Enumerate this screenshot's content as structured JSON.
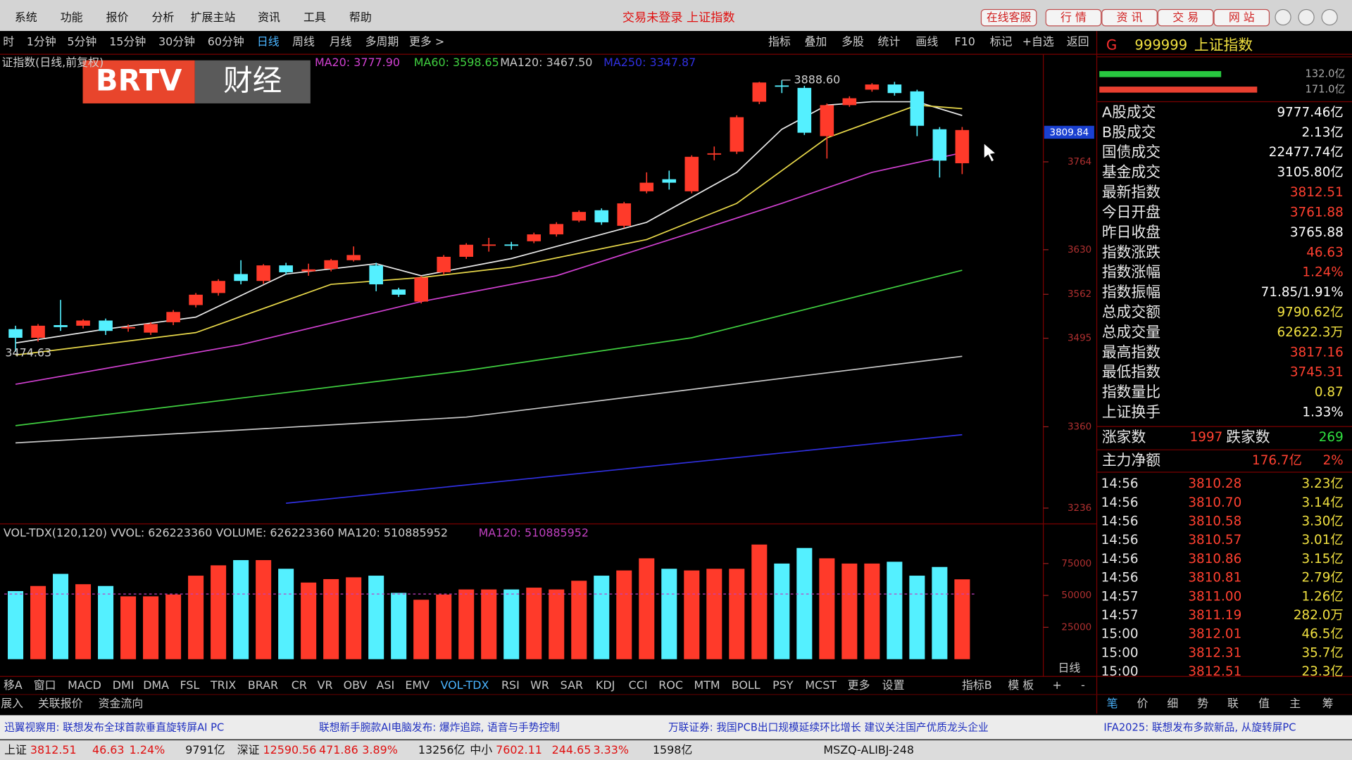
{
  "menu": [
    "系统",
    "功能",
    "报价",
    "分析",
    "扩展主站",
    "资讯",
    "工具",
    "帮助"
  ],
  "window_title": "交易未登录 上证指数",
  "top_buttons": [
    "在线客服",
    "行 情",
    "资 讯",
    "交 易",
    "网 站"
  ],
  "periods": [
    "时",
    "1分钟",
    "5分钟",
    "15分钟",
    "30分钟",
    "60分钟",
    "日线",
    "周线",
    "月线",
    "多周期",
    "更多 >"
  ],
  "tools": [
    "指标",
    "叠加",
    "多股",
    "统计",
    "画线",
    "F10",
    "标记",
    "+自选",
    "返回"
  ],
  "logo": {
    "brand": "BRTV",
    "channel": "财经"
  },
  "chart_data": [
    {
      "type": "candlestick",
      "title": "证指数(日线,前复权)",
      "up_color": "#ff3a2a",
      "down_color": "#54f0ff",
      "open": [
        3508.9,
        3495.7,
        3515,
        3514.1,
        3522.0,
        3510,
        3503.6,
        3519.4,
        3545.6,
        3564.0,
        3592.9,
        3582.4,
        3606.1,
        3597,
        3600.8,
        3614.0,
        3606.1,
        3569.3,
        3550.9,
        3595.6,
        3619.2,
        3636,
        3638,
        3642.9,
        3653.4,
        3674.4,
        3690.2,
        3666.5,
        3719.1,
        3737.5,
        3719.1,
        3775,
        3779.5,
        3855.7,
        3880.5,
        3876.8,
        3803.2,
        3850.5,
        3874.1,
        3882.0,
        3871.5,
        3813.7,
        3761.88
      ],
      "close": [
        3495.7,
        3514.1,
        3512,
        3522.0,
        3506.2,
        3512,
        3516.7,
        3535.1,
        3561.4,
        3582.4,
        3582.4,
        3606.1,
        3595.6,
        3600,
        3614.0,
        3621.9,
        3577.2,
        3561.4,
        3587.6,
        3619.2,
        3637.6,
        3638,
        3636,
        3653.4,
        3669.2,
        3687.6,
        3671.8,
        3700.7,
        3732.2,
        3732.2,
        3771.7,
        3777,
        3832.1,
        3885,
        3879.4,
        3808.4,
        3850.5,
        3861.0,
        3882.0,
        3868.9,
        3819.0,
        3765.88,
        3812.51
      ],
      "high": [
        3514.1,
        3516.7,
        3553.5,
        3524,
        3525,
        3516,
        3519.4,
        3538,
        3564,
        3585,
        3614.0,
        3608,
        3610,
        3608.7,
        3616,
        3635.0,
        3610,
        3572,
        3590,
        3621.9,
        3640,
        3648.1,
        3642,
        3656,
        3672,
        3690,
        3693,
        3703,
        3748.0,
        3750.6,
        3774,
        3787.4,
        3835,
        3886,
        3888.6,
        3880,
        3853,
        3864,
        3884,
        3886,
        3874,
        3817,
        3817.16
      ],
      "low": [
        3474.63,
        3490,
        3506.2,
        3510,
        3500,
        3505,
        3500,
        3515,
        3542,
        3560,
        3577.2,
        3578,
        3592,
        3590.3,
        3597,
        3612,
        3566.7,
        3558,
        3548,
        3592,
        3616,
        3627.1,
        3630,
        3640,
        3650,
        3672,
        3668,
        3663,
        3716,
        3721.7,
        3716,
        3766.4,
        3776,
        3852,
        3868.9,
        3805,
        3769.0,
        3848,
        3871,
        3865,
        3803.2,
        3740.1,
        3745.31
      ],
      "annotations": [
        {
          "value": 3888.6,
          "label": "3888.60"
        },
        {
          "value": 3474.63,
          "label": "3474.63"
        }
      ],
      "cursor_label": "3809.84",
      "lines": [
        {
          "name": "MA5",
          "color": "#e8e8e8",
          "idx": [
            0,
            4,
            8,
            12,
            16,
            18,
            22,
            28,
            32,
            34,
            36,
            38,
            40,
            42
          ],
          "values": [
            3487.8,
            3508.9,
            3527.2,
            3592.9,
            3608.7,
            3590.3,
            3616.6,
            3671.8,
            3748.0,
            3813.7,
            3850.5,
            3855.7,
            3855.7,
            3834.7
          ]
        },
        {
          "name": "MA10",
          "color": "#e8d84a",
          "idx": [
            0,
            8,
            14,
            18,
            22,
            28,
            32,
            36,
            40,
            42
          ],
          "values": [
            3469.4,
            3503.6,
            3577.2,
            3587.6,
            3603.5,
            3645.5,
            3700.7,
            3800.6,
            3850.5,
            3845.2
          ]
        },
        {
          "name": "MA20",
          "color": "#d040d0",
          "label": "MA20: 3777.90",
          "idx": [
            0,
            10,
            18,
            24,
            30,
            34,
            38,
            42
          ],
          "values": [
            3424.8,
            3485.2,
            3550.9,
            3590.3,
            3656.0,
            3700.7,
            3748.0,
            3777.9
          ]
        },
        {
          "name": "MA60",
          "color": "#40d040",
          "label": "MA60: 3598.65",
          "idx": [
            0,
            20,
            30,
            42
          ],
          "values": [
            3361.7,
            3445.8,
            3495.7,
            3598.65
          ]
        },
        {
          "name": "MA120",
          "color": "#c8c8c8",
          "label": "MA120: 3467.50",
          "idx": [
            0,
            20,
            42
          ],
          "values": [
            3335.4,
            3374.8,
            3467.5
          ]
        },
        {
          "name": "MA250",
          "color": "#3030e0",
          "label": "MA250: 3347.87",
          "idx": [
            12,
            42
          ],
          "values": [
            3243.4,
            3347.87
          ]
        }
      ],
      "ylim": [
        3214.5,
        3924.1
      ],
      "yticks": [
        3236,
        3360,
        3495,
        3562,
        3630,
        3764
      ]
    },
    {
      "type": "bar",
      "title": "VOL-TDX(120,120) VVOL: 626223360 VOLUME: 626223360 MA120: 510885952",
      "ma_label": "MA120: 510885952",
      "ma_value": 51088.5952,
      "ma_color": "#c040c0",
      "values": [
        53400,
        57400,
        66900,
        58800,
        57400,
        49300,
        49300,
        50700,
        65500,
        73600,
        77700,
        77700,
        70900,
        60100,
        62800,
        64200,
        65500,
        52000,
        46600,
        50700,
        54700,
        54700,
        54700,
        56100,
        54700,
        61500,
        65500,
        69600,
        79100,
        70900,
        69600,
        70900,
        70900,
        89900,
        75000,
        87200,
        79100,
        75000,
        75000,
        76400,
        65500,
        72300,
        62622.3
      ],
      "ylim": [
        0,
        103380
      ],
      "yticks": [
        25000,
        50000,
        75000
      ]
    }
  ],
  "quote": {
    "flag": "G",
    "code": "999999",
    "name": "上证指数",
    "bars": [
      {
        "value": 132.0,
        "label": "132.0亿",
        "color": "#28c840"
      },
      {
        "value": 171.0,
        "label": "171.0亿",
        "color": "#e84030"
      }
    ],
    "stats": [
      {
        "label": "A股成交",
        "value": "9777.46亿",
        "color": "#ffffff"
      },
      {
        "label": "B股成交",
        "value": "2.13亿",
        "color": "#ffffff"
      },
      {
        "label": "国债成交",
        "value": "22477.74亿",
        "color": "#ffffff"
      },
      {
        "label": "基金成交",
        "value": "3105.80亿",
        "color": "#ffffff"
      },
      {
        "label": "最新指数",
        "value": "3812.51",
        "color": "#ff4030"
      },
      {
        "label": "今日开盘",
        "value": "3761.88",
        "color": "#ff4030"
      },
      {
        "label": "昨日收盘",
        "value": "3765.88",
        "color": "#ffffff"
      },
      {
        "label": "指数涨跌",
        "value": "46.63",
        "color": "#ff4030"
      },
      {
        "label": "指数涨幅",
        "value": "1.24%",
        "color": "#ff4030"
      },
      {
        "label": "指数振幅",
        "value": "71.85/1.91%",
        "color": "#ffffff"
      },
      {
        "label": "总成交额",
        "value": "9790.62亿",
        "color": "#f0e040"
      },
      {
        "label": "总成交量",
        "value": "62622.3万",
        "color": "#f0e040"
      },
      {
        "label": "最高指数",
        "value": "3817.16",
        "color": "#ff4030"
      },
      {
        "label": "最低指数",
        "value": "3745.31",
        "color": "#ff4030"
      },
      {
        "label": "指数量比",
        "value": "0.87",
        "color": "#f0e040"
      },
      {
        "label": "上证换手",
        "value": "1.33%",
        "color": "#ffffff"
      }
    ],
    "breadth": {
      "up_label": "涨家数",
      "up": "1997",
      "down_label": "跌家数",
      "down": "269"
    },
    "flow": {
      "label": "主力净额",
      "value": "176.7亿",
      "pct": "2%"
    },
    "ticks": [
      [
        "14:56",
        "3810.28",
        "3.23亿"
      ],
      [
        "14:56",
        "3810.70",
        "3.14亿"
      ],
      [
        "14:56",
        "3810.58",
        "3.30亿"
      ],
      [
        "14:56",
        "3810.57",
        "3.01亿"
      ],
      [
        "14:56",
        "3810.86",
        "3.15亿"
      ],
      [
        "14:56",
        "3810.81",
        "2.79亿"
      ],
      [
        "14:57",
        "3811.00",
        "1.26亿"
      ],
      [
        "14:57",
        "3811.19",
        "282.0万"
      ],
      [
        "15:00",
        "3812.01",
        "46.5亿"
      ],
      [
        "15:00",
        "3812.31",
        "35.7亿"
      ],
      [
        "15:00",
        "3812.51",
        "23.3亿"
      ]
    ]
  },
  "indicator_tabs": [
    "移A",
    "窗口",
    "MACD",
    "DMI",
    "DMA",
    "FSL",
    "TRIX",
    "BRAR",
    "CR",
    "VR",
    "OBV",
    "ASI",
    "EMV",
    "VOL-TDX",
    "RSI",
    "WR",
    "SAR",
    "KDJ",
    "CCI",
    "ROC",
    "MTM",
    "BOLL",
    "PSY",
    "MCST",
    "更多",
    "设置"
  ],
  "right_tabs": [
    "指标B",
    "模 板",
    "+",
    "-"
  ],
  "period_label": "日线",
  "sub_tabs": [
    "展入",
    "关联报价",
    "资金流向"
  ],
  "panel_tabs": [
    "笔",
    "价",
    "细",
    "势",
    "联",
    "值",
    "主",
    "筹"
  ],
  "news": [
    "迅翼视察用: 联想发布全球首款垂直旋转屏AI PC",
    "联想新手腕款AI电脑发布: 爆炸追踪, 语音与手势控制",
    "万联证券: 我国PCB出口规模延续环比增长 建议关注国产优质龙头企业",
    "IFA2025: 联想发布多款新品, 从旋转屏PC"
  ],
  "status": [
    "上证",
    "3812.51",
    "46.63",
    "1.24%",
    "9791亿",
    "深证",
    "12590.56",
    "471.86",
    "3.89%",
    "13256亿",
    "中小",
    "7602.11",
    "244.65",
    "3.33%",
    "1598亿",
    "MSZQ-ALIBJ-248"
  ]
}
